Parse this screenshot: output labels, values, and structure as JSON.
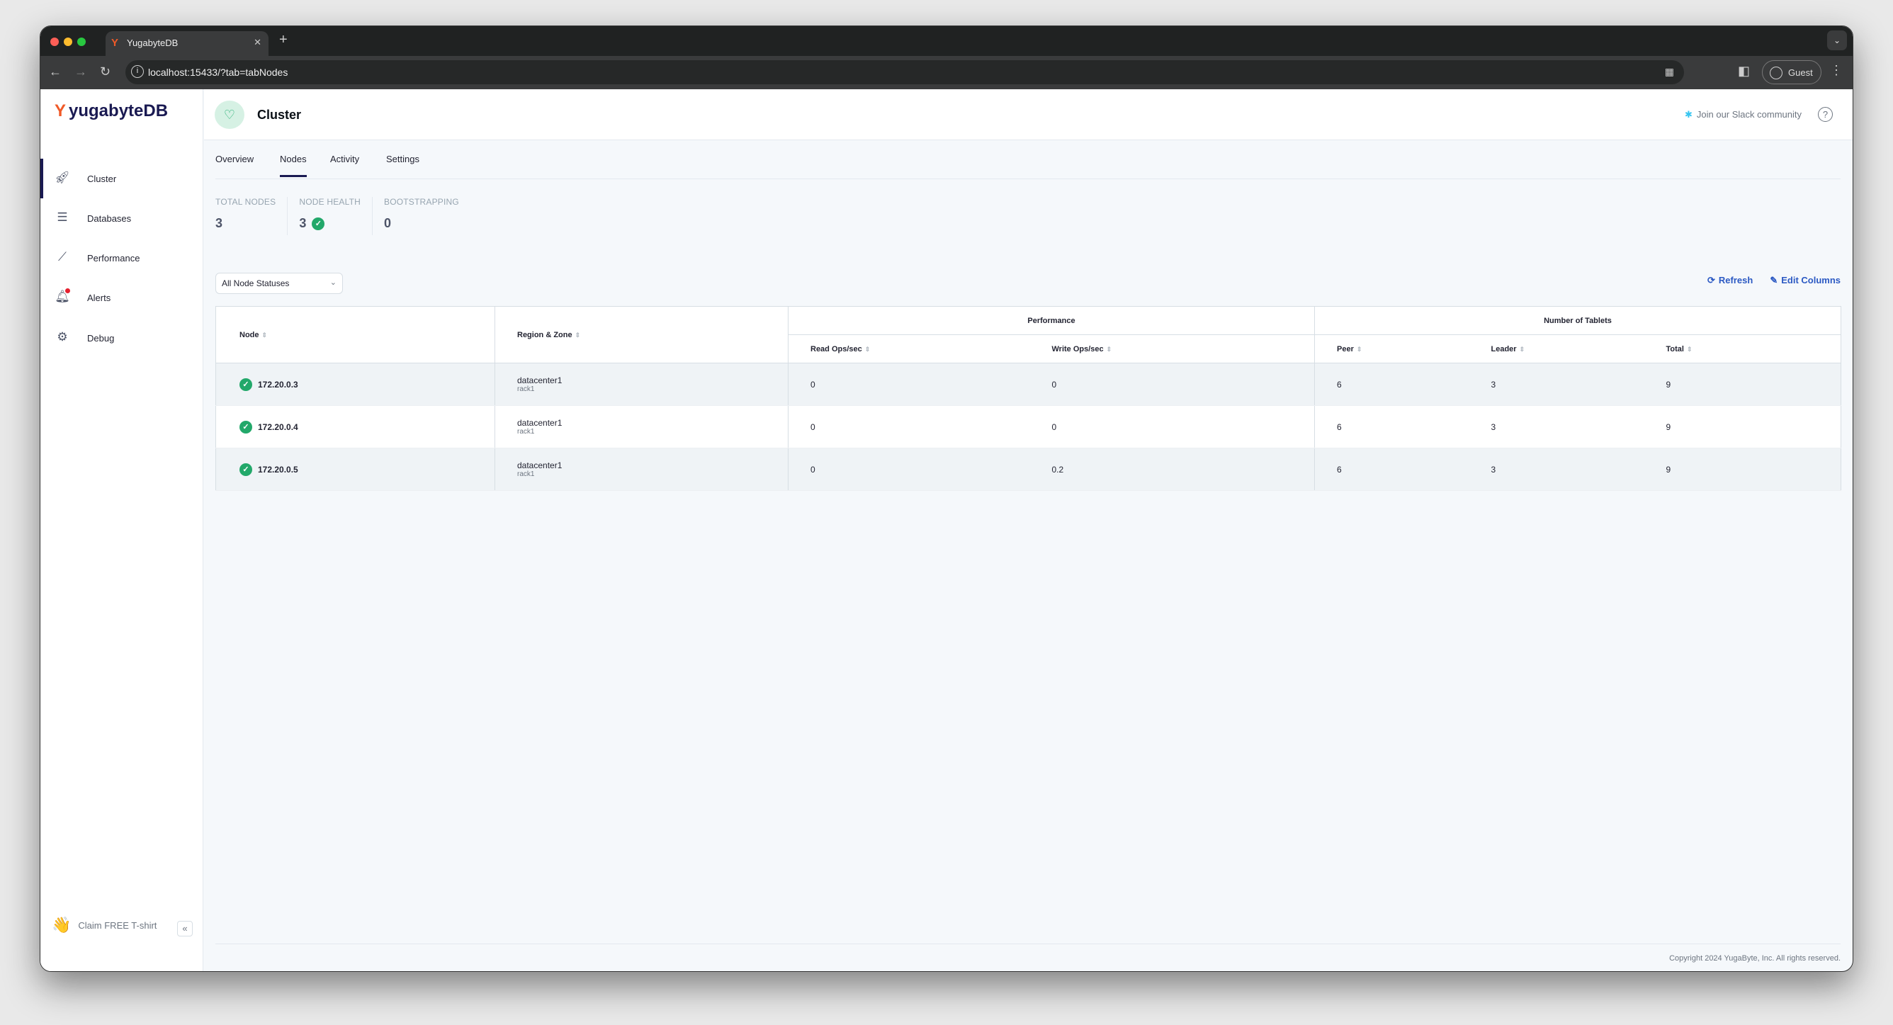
{
  "browser": {
    "tab_title": "YugabyteDB",
    "url": "localhost:15433/?tab=tabNodes",
    "profile": "Guest"
  },
  "sidebar": {
    "logo": "yugabyteDB",
    "items": [
      {
        "label": "Cluster",
        "icon": "rocket-icon"
      },
      {
        "label": "Databases",
        "icon": "database-icon"
      },
      {
        "label": "Performance",
        "icon": "chart-line-icon"
      },
      {
        "label": "Alerts",
        "icon": "bell-icon"
      },
      {
        "label": "Debug",
        "icon": "gear-icon"
      }
    ],
    "claim": "Claim FREE T-shirt"
  },
  "header": {
    "title": "Cluster",
    "slack": "Join our Slack community",
    "help": "?"
  },
  "tabs": [
    "Overview",
    "Nodes",
    "Activity",
    "Settings"
  ],
  "stats": [
    {
      "label": "TOTAL NODES",
      "value": "3"
    },
    {
      "label": "NODE HEALTH",
      "value": "3"
    },
    {
      "label": "BOOTSTRAPPING",
      "value": "0"
    }
  ],
  "filter": {
    "selected": "All Node Statuses"
  },
  "actions": {
    "refresh": "Refresh",
    "edit_columns": "Edit Columns"
  },
  "table": {
    "headers": {
      "node": "Node",
      "region": "Region & Zone",
      "performance": "Performance",
      "tablets": "Number of Tablets",
      "read": "Read Ops/sec",
      "write": "Write Ops/sec",
      "peer": "Peer",
      "leader": "Leader",
      "total": "Total"
    },
    "rows": [
      {
        "node": "172.20.0.3",
        "region": "datacenter1",
        "zone": "rack1",
        "read": "0",
        "write": "0",
        "peer": "6",
        "leader": "3",
        "total": "9"
      },
      {
        "node": "172.20.0.4",
        "region": "datacenter1",
        "zone": "rack1",
        "read": "0",
        "write": "0",
        "peer": "6",
        "leader": "3",
        "total": "9"
      },
      {
        "node": "172.20.0.5",
        "region": "datacenter1",
        "zone": "rack1",
        "read": "0",
        "write": "0.2",
        "peer": "6",
        "leader": "3",
        "total": "9"
      }
    ]
  },
  "footer": {
    "copyright": "Copyright 2024 YugaByte, Inc. All rights reserved."
  },
  "colors": {
    "brand": "#f05a28",
    "navy": "#1a1a52",
    "link": "#2b59c3",
    "success": "#22a86a"
  }
}
